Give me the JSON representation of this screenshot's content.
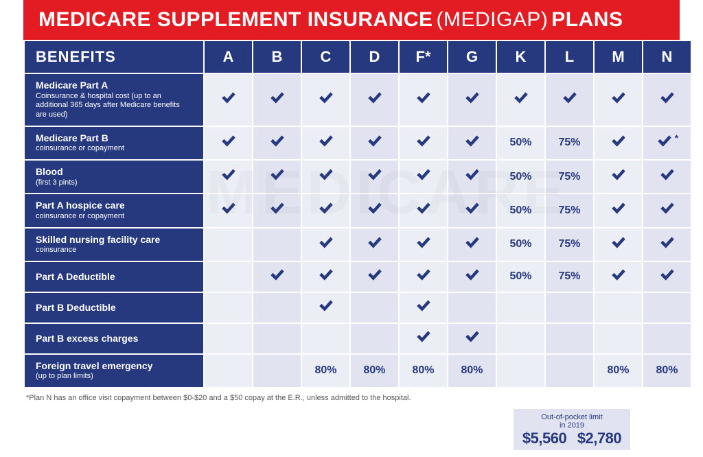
{
  "colors": {
    "header_red": "#e31b23",
    "navy": "#26397f",
    "cell_odd": "#eceef5",
    "cell_even": "#e1e4f0",
    "white": "#ffffff",
    "footnote_grey": "#555555"
  },
  "title": {
    "part1": "MEDICARE SUPPLEMENT INSURANCE",
    "part2": "(MEDIGAP)",
    "part3": "PLANS"
  },
  "benefits_header": "BENEFITS",
  "plans": [
    "A",
    "B",
    "C",
    "D",
    "F*",
    "G",
    "K",
    "L",
    "M",
    "N"
  ],
  "type": "table",
  "cell_value_fontsize": 16,
  "benefit_title_fontsize": 14,
  "benefit_sub_fontsize": 11,
  "header_fontsize": 22,
  "benefits": [
    {
      "title": "Medicare Part A",
      "sub": "Coinsurance & hospital cost (up to an additional 365 days after Medicare benefits are used)",
      "values": [
        "✔",
        "✔",
        "✔",
        "✔",
        "✔",
        "✔",
        "✔",
        "✔",
        "✔",
        "✔"
      ]
    },
    {
      "title": "Medicare Part B",
      "sub": "coinsurance or copayment",
      "values": [
        "✔",
        "✔",
        "✔",
        "✔",
        "✔",
        "✔",
        "50%",
        "75%",
        "✔",
        "✔*"
      ]
    },
    {
      "title": "Blood",
      "sub": "(first 3 pints)",
      "values": [
        "✔",
        "✔",
        "✔",
        "✔",
        "✔",
        "✔",
        "50%",
        "75%",
        "✔",
        "✔"
      ]
    },
    {
      "title": "Part A hospice care",
      "sub": "coinsurance or copayment",
      "values": [
        "✔",
        "✔",
        "✔",
        "✔",
        "✔",
        "✔",
        "50%",
        "75%",
        "✔",
        "✔"
      ]
    },
    {
      "title": "Skilled nursing facility care",
      "sub": "coinsurance",
      "values": [
        "",
        "",
        "✔",
        "✔",
        "✔",
        "✔",
        "50%",
        "75%",
        "✔",
        "✔"
      ]
    },
    {
      "title": "Part A Deductible",
      "sub": "",
      "values": [
        "",
        "✔",
        "✔",
        "✔",
        "✔",
        "✔",
        "50%",
        "75%",
        "✔",
        "✔"
      ]
    },
    {
      "title": "Part B Deductible",
      "sub": "",
      "values": [
        "",
        "",
        "✔",
        "",
        "✔",
        "",
        "",
        "",
        "",
        ""
      ]
    },
    {
      "title": "Part B excess charges",
      "sub": "",
      "values": [
        "",
        "",
        "",
        "",
        "✔",
        "✔",
        "",
        "",
        "",
        ""
      ]
    },
    {
      "title": "Foreign travel emergency",
      "sub": "(up to plan limits)",
      "values": [
        "",
        "",
        "80%",
        "80%",
        "80%",
        "80%",
        "",
        "",
        "80%",
        "80%"
      ]
    }
  ],
  "footnote": "*Plan N has an office visit copayment between $0-$20 and  a $50 copay at the E.R., unless admitted to the hospital.",
  "oop": {
    "label_line1": "Out-of-pocket limit",
    "label_line2": "in 2019",
    "value_k": "$5,560",
    "value_l": "$2,780"
  },
  "watermark": "MEDICARE"
}
